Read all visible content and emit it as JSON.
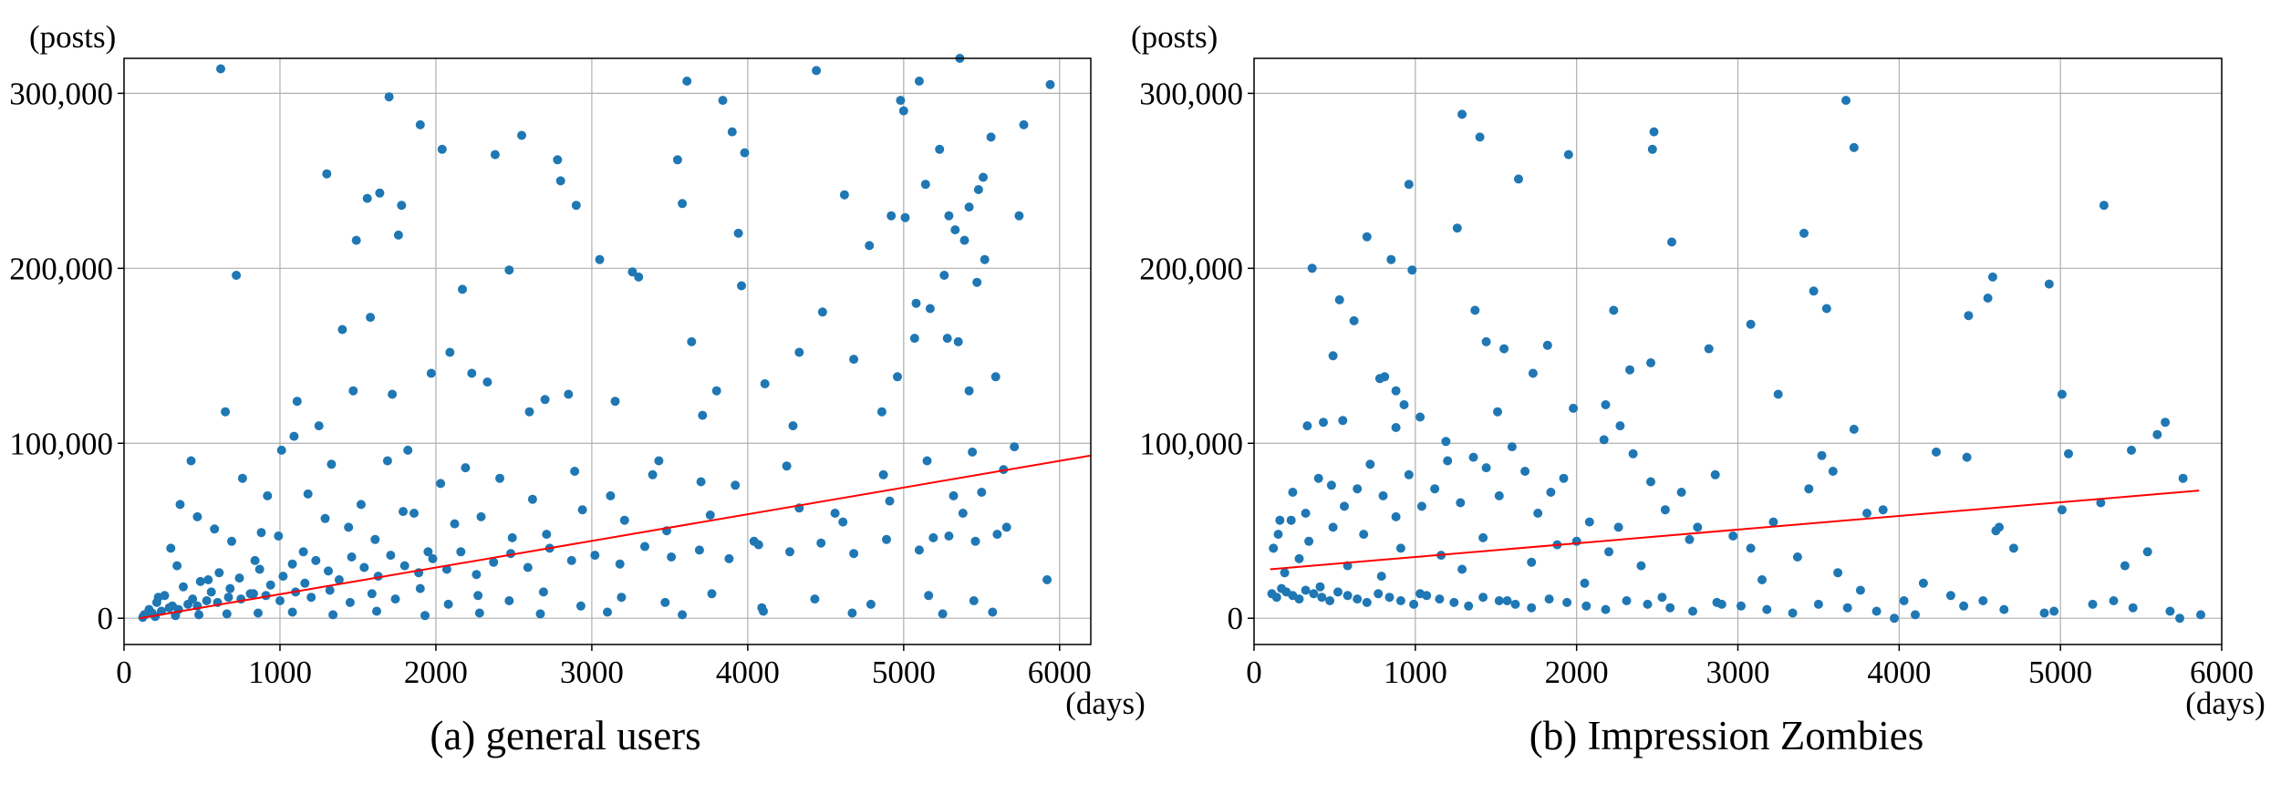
{
  "chart_data": [
    {
      "type": "scatter",
      "caption": "(a) general users",
      "x_unit": "(days)",
      "y_unit": "(posts)",
      "xlim": [
        0,
        6200
      ],
      "ylim": [
        -15000,
        320000
      ],
      "x_ticks": [
        0,
        1000,
        2000,
        3000,
        4000,
        5000,
        6000
      ],
      "y_ticks": [
        0,
        100000,
        200000,
        300000
      ],
      "grid": true,
      "point_color": "#1f77b4",
      "trend_color": "#ff0000",
      "trend_line": {
        "x": [
          100,
          6200
        ],
        "y": [
          0,
          93000
        ]
      },
      "points": {
        "x": [
          620,
          720,
          1300,
          1490,
          1560,
          1640,
          1700,
          1760,
          1780,
          1900,
          2040,
          2380,
          2550,
          2780,
          2800,
          2900,
          3300,
          3550,
          3580,
          3610,
          3840,
          3900,
          3940,
          3980,
          4440,
          4620,
          4780,
          4920,
          4980,
          5000,
          5010,
          5080,
          5100,
          5140,
          5230,
          5280,
          5290,
          5330,
          5360,
          5390,
          5420,
          5480,
          5510,
          5560,
          5740,
          5770,
          5920,
          5940,
          360,
          430,
          580,
          650,
          920,
          1090,
          1110,
          1250,
          1400,
          1470,
          1580,
          1720,
          1820,
          1970,
          2090,
          2170,
          2230,
          2330,
          2470,
          2600,
          2700,
          2850,
          3050,
          3150,
          3260,
          3430,
          3640,
          3710,
          3800,
          3960,
          4110,
          4290,
          4330,
          4480,
          4680,
          4860,
          4960,
          5070,
          5170,
          5260,
          5350,
          5420,
          5470,
          5520,
          5590,
          5710,
          300,
          470,
          760,
          880,
          1010,
          1180,
          1330,
          1520,
          1690,
          1860,
          2030,
          2190,
          2410,
          2620,
          2890,
          3120,
          3390,
          3700,
          3920,
          4250,
          4560,
          4870,
          5150,
          5320,
          5440,
          5640,
          220,
          340,
          540,
          690,
          840,
          990,
          1150,
          1290,
          1440,
          1610,
          1790,
          1950,
          2120,
          2290,
          2490,
          2710,
          2940,
          3210,
          3480,
          3760,
          4040,
          4330,
          4610,
          4910,
          5190,
          5380,
          5500,
          5660,
          160,
          210,
          260,
          310,
          380,
          440,
          490,
          560,
          610,
          680,
          740,
          810,
          870,
          940,
          1020,
          1080,
          1160,
          1230,
          1310,
          1380,
          1460,
          1540,
          1630,
          1710,
          1800,
          1890,
          1980,
          2070,
          2160,
          2260,
          2370,
          2480,
          2590,
          2730,
          2870,
          3020,
          3180,
          3340,
          3510,
          3690,
          3880,
          4070,
          4270,
          4470,
          4680,
          4890,
          5100,
          5290,
          5460,
          5600,
          130,
          180,
          240,
          290,
          350,
          410,
          470,
          530,
          600,
          670,
          750,
          830,
          910,
          1000,
          1100,
          1200,
          1320,
          1450,
          1590,
          1740,
          1900,
          2080,
          2270,
          2470,
          2690,
          2930,
          3190,
          3470,
          3770,
          4090,
          4430,
          4790,
          5160,
          5450,
          120,
          200,
          330,
          480,
          660,
          860,
          1080,
          1340,
          1620,
          1930,
          2280,
          2670,
          3100,
          3580,
          4100,
          4670,
          5250,
          5570
        ],
        "y": [
          314000,
          196000,
          254000,
          216000,
          240000,
          243000,
          298000,
          219000,
          236000,
          282000,
          268000,
          265000,
          276000,
          262000,
          250000,
          236000,
          195000,
          262000,
          237000,
          307000,
          296000,
          278000,
          220000,
          266000,
          313000,
          242000,
          213000,
          230000,
          296000,
          290000,
          229000,
          180000,
          307000,
          248000,
          268000,
          160000,
          230000,
          222000,
          320000,
          216000,
          235000,
          245000,
          252000,
          275000,
          230000,
          282000,
          22000,
          305000,
          65000,
          90000,
          51000,
          118000,
          70000,
          104000,
          124000,
          110000,
          165000,
          130000,
          172000,
          128000,
          96000,
          140000,
          152000,
          188000,
          140000,
          135000,
          199000,
          118000,
          125000,
          128000,
          205000,
          124000,
          198000,
          90000,
          158000,
          116000,
          130000,
          190000,
          134000,
          110000,
          152000,
          175000,
          148000,
          118000,
          138000,
          160000,
          177000,
          196000,
          158000,
          130000,
          192000,
          205000,
          138000,
          98000,
          40000,
          58000,
          80000,
          49000,
          96000,
          71000,
          88000,
          65000,
          90000,
          60000,
          77000,
          86000,
          80000,
          68000,
          84000,
          70000,
          82000,
          78000,
          76000,
          87000,
          60000,
          82000,
          90000,
          70000,
          95000,
          85000,
          12000,
          30000,
          22000,
          44000,
          33000,
          47000,
          38000,
          57000,
          52000,
          45000,
          61000,
          38000,
          54000,
          58000,
          46000,
          48000,
          62000,
          56000,
          50000,
          59000,
          44000,
          63000,
          55000,
          67000,
          46000,
          60000,
          72000,
          52000,
          5000,
          9000,
          13000,
          7000,
          18000,
          11000,
          21000,
          15000,
          26000,
          17000,
          23000,
          14000,
          28000,
          19000,
          24000,
          31000,
          20000,
          33000,
          27000,
          22000,
          35000,
          29000,
          24000,
          36000,
          30000,
          26000,
          34000,
          28000,
          38000,
          25000,
          32000,
          37000,
          29000,
          40000,
          33000,
          36000,
          31000,
          41000,
          35000,
          39000,
          34000,
          42000,
          38000,
          43000,
          37000,
          45000,
          39000,
          47000,
          44000,
          48000,
          2000,
          3000,
          4000,
          6000,
          5000,
          8000,
          7000,
          10000,
          9000,
          12000,
          11000,
          14000,
          13000,
          10000,
          15000,
          12000,
          16000,
          9000,
          14000,
          11000,
          17000,
          8000,
          13000,
          10000,
          15000,
          7000,
          12000,
          9000,
          14000,
          6000,
          11000,
          8000,
          13000,
          10000,
          500,
          1000,
          1500,
          2000,
          2500,
          3000,
          3500,
          2000,
          4000,
          1500,
          3000,
          2500,
          3500,
          2000,
          4000,
          3000,
          2500,
          3500
        ]
      }
    },
    {
      "type": "scatter",
      "caption": "(b) Impression Zombies",
      "x_unit": "(days)",
      "y_unit": "(posts)",
      "xlim": [
        0,
        6000
      ],
      "ylim": [
        -15000,
        320000
      ],
      "x_ticks": [
        0,
        1000,
        2000,
        3000,
        4000,
        5000,
        6000
      ],
      "y_ticks": [
        0,
        100000,
        200000,
        300000
      ],
      "grid": true,
      "point_color": "#1f77b4",
      "trend_color": "#ff0000",
      "trend_line": {
        "x": [
          100,
          5860
        ],
        "y": [
          28000,
          73000
        ]
      },
      "points": {
        "x": [
          360,
          490,
          530,
          700,
          810,
          850,
          880,
          960,
          980,
          1260,
          1290,
          1370,
          1400,
          1640,
          1950,
          2230,
          2470,
          2480,
          2590,
          3410,
          3550,
          3670,
          3720,
          5270,
          4930,
          4580,
          4550,
          4430,
          3470,
          3250,
          3080,
          2820,
          2460,
          2330,
          2270,
          2180,
          1980,
          1820,
          1730,
          1550,
          1510,
          1440,
          1190,
          1030,
          930,
          880,
          780,
          620,
          550,
          430,
          330,
          5010,
          5050,
          5650,
          5600,
          5760,
          5740,
          5540,
          5440,
          5250,
          5010,
          4620,
          4520,
          4420,
          4320,
          4230,
          4030,
          3900,
          3800,
          3720,
          3590,
          3520,
          3440,
          3220,
          3080,
          2970,
          2860,
          2750,
          2650,
          2550,
          2460,
          2350,
          2260,
          2170,
          2080,
          2000,
          1920,
          1840,
          1760,
          1680,
          1600,
          1520,
          1440,
          1360,
          1280,
          1200,
          1120,
          1040,
          960,
          880,
          800,
          720,
          640,
          560,
          480,
          400,
          320,
          240,
          160,
          4960,
          5330,
          5400,
          4710,
          4600,
          4150,
          3970,
          3760,
          3620,
          3370,
          3150,
          2900,
          2700,
          2530,
          2400,
          2200,
          2050,
          1880,
          1720,
          1570,
          1420,
          1290,
          1160,
          1030,
          910,
          790,
          680,
          580,
          490,
          410,
          340,
          280,
          230,
          190,
          150,
          120,
          5870,
          5680,
          5450,
          5200,
          4900,
          4650,
          4400,
          4100,
          3860,
          3680,
          3500,
          3340,
          3180,
          3020,
          2870,
          2720,
          2580,
          2440,
          2310,
          2180,
          2060,
          1940,
          1830,
          1720,
          1620,
          1520,
          1420,
          1330,
          1240,
          1150,
          1070,
          990,
          910,
          840,
          770,
          700,
          640,
          580,
          520,
          470,
          420,
          370,
          320,
          280,
          240,
          200,
          170,
          140,
          110
        ],
        "y": [
          200000,
          150000,
          182000,
          218000,
          138000,
          205000,
          130000,
          248000,
          199000,
          223000,
          288000,
          176000,
          275000,
          251000,
          265000,
          176000,
          268000,
          278000,
          215000,
          220000,
          177000,
          296000,
          269000,
          236000,
          191000,
          195000,
          183000,
          173000,
          187000,
          128000,
          168000,
          154000,
          146000,
          142000,
          110000,
          122000,
          120000,
          156000,
          140000,
          154000,
          118000,
          158000,
          101000,
          115000,
          122000,
          109000,
          137000,
          170000,
          113000,
          112000,
          110000,
          128000,
          94000,
          112000,
          105000,
          80000,
          0,
          38000,
          96000,
          66000,
          62000,
          52000,
          10000,
          92000,
          13000,
          95000,
          10000,
          62000,
          60000,
          108000,
          84000,
          93000,
          74000,
          55000,
          40000,
          47000,
          82000,
          52000,
          72000,
          62000,
          78000,
          94000,
          52000,
          102000,
          55000,
          44000,
          80000,
          72000,
          60000,
          84000,
          98000,
          70000,
          86000,
          92000,
          66000,
          90000,
          74000,
          64000,
          82000,
          58000,
          70000,
          88000,
          74000,
          64000,
          76000,
          80000,
          60000,
          72000,
          56000,
          4000,
          10000,
          30000,
          40000,
          50000,
          20000,
          0,
          16000,
          26000,
          35000,
          22000,
          8000,
          45000,
          12000,
          30000,
          38000,
          20000,
          42000,
          32000,
          10000,
          46000,
          28000,
          36000,
          14000,
          40000,
          24000,
          48000,
          30000,
          52000,
          18000,
          44000,
          34000,
          56000,
          26000,
          48000,
          40000,
          2000,
          4000,
          6000,
          8000,
          3000,
          5000,
          7000,
          2000,
          4000,
          6000,
          8000,
          3000,
          5000,
          7000,
          9000,
          4000,
          6000,
          8000,
          10000,
          5000,
          7000,
          9000,
          11000,
          6000,
          8000,
          10000,
          12000,
          7000,
          9000,
          11000,
          13000,
          8000,
          10000,
          12000,
          14000,
          9000,
          11000,
          13000,
          15000,
          10000,
          12000,
          14000,
          16000,
          11000,
          13000,
          15000,
          17000,
          12000,
          14000
        ]
      }
    }
  ]
}
